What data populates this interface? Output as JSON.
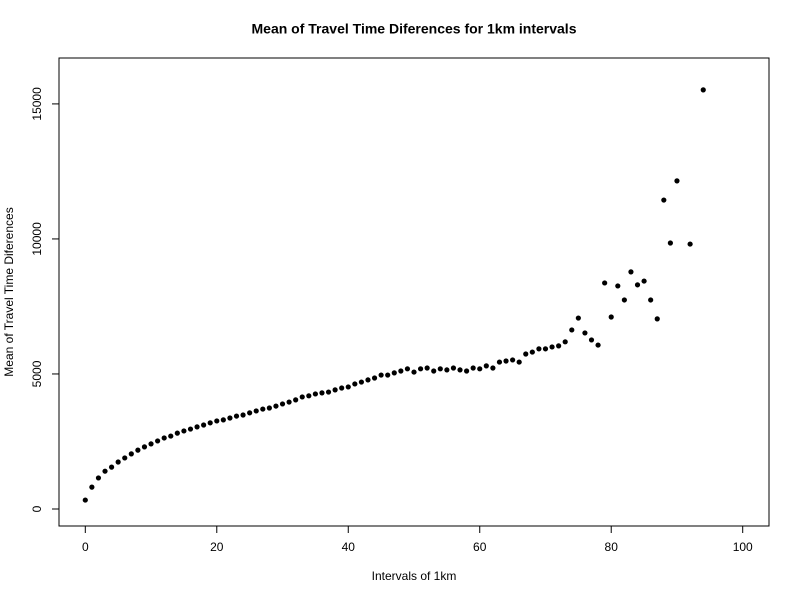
{
  "chart_data": {
    "type": "scatter",
    "title": "Mean of Travel Time Diferences for 1km intervals",
    "x_label": "Intervals of 1km",
    "y_label": "Mean of Travel Time Diferences",
    "color": "#000000",
    "x": [
      0,
      1,
      2,
      3,
      4,
      5,
      6,
      7,
      8,
      9,
      10,
      11,
      12,
      13,
      14,
      15,
      16,
      17,
      18,
      19,
      20,
      21,
      22,
      23,
      24,
      25,
      26,
      27,
      28,
      29,
      30,
      31,
      32,
      33,
      34,
      35,
      36,
      37,
      38,
      39,
      40,
      41,
      42,
      43,
      44,
      45,
      46,
      47,
      48,
      49,
      50,
      51,
      52,
      53,
      54,
      55,
      56,
      57,
      58,
      59,
      60,
      61,
      62,
      63,
      64,
      65,
      66,
      67,
      68,
      69,
      70,
      71,
      72,
      73,
      74,
      75,
      76,
      77,
      78,
      79,
      80,
      81,
      82,
      83,
      84,
      85,
      86,
      87,
      88,
      89,
      90,
      92,
      94
    ],
    "values": [
      330,
      810,
      1150,
      1400,
      1550,
      1740,
      1890,
      2040,
      2180,
      2300,
      2410,
      2520,
      2630,
      2700,
      2810,
      2890,
      2960,
      3040,
      3110,
      3190,
      3260,
      3300,
      3370,
      3440,
      3480,
      3560,
      3630,
      3700,
      3740,
      3810,
      3890,
      3960,
      4040,
      4150,
      4190,
      4260,
      4300,
      4330,
      4410,
      4480,
      4520,
      4630,
      4700,
      4780,
      4850,
      4960,
      4960,
      5040,
      5110,
      5190,
      5070,
      5190,
      5220,
      5110,
      5190,
      5150,
      5220,
      5150,
      5110,
      5220,
      5190,
      5300,
      5220,
      5440,
      5480,
      5520,
      5440,
      5740,
      5810,
      5930,
      5930,
      6000,
      6040,
      6190,
      6630,
      7070,
      6520,
      6260,
      6070,
      8370,
      7110,
      8260,
      7740,
      8780,
      8300,
      8440,
      7740,
      7040,
      11440,
      9850,
      12150,
      9810,
      15520
    ],
    "xlim": [
      -4,
      104
    ],
    "ylim": [
      -630,
      16700
    ],
    "xticks": [
      0,
      20,
      40,
      60,
      80,
      100
    ],
    "yticks": [
      0,
      5000,
      10000,
      15000
    ]
  }
}
